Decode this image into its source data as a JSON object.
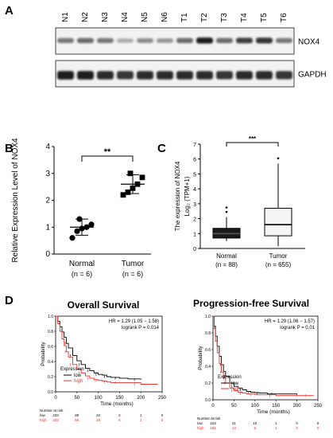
{
  "panel_labels": {
    "a": "A",
    "b": "B",
    "c": "C",
    "d": "D"
  },
  "blot": {
    "lanes": [
      "N1",
      "N2",
      "N3",
      "N4",
      "N5",
      "N6",
      "T1",
      "T2",
      "T3",
      "T4",
      "T5",
      "T6"
    ],
    "bands": [
      "NOX4",
      "GAPDH"
    ],
    "nox4_intensity": [
      0.55,
      0.6,
      0.55,
      0.3,
      0.45,
      0.4,
      0.6,
      0.95,
      0.6,
      0.8,
      0.85,
      0.55
    ],
    "gapdh_intensity": [
      0.95,
      0.95,
      0.9,
      0.85,
      0.9,
      0.9,
      0.9,
      0.9,
      0.85,
      0.9,
      0.9,
      0.85
    ]
  },
  "chart_data": [
    {
      "type": "scatter",
      "ylabel": "Relative Expression Level of NOX4",
      "categories": [
        "Normal",
        "Tumor"
      ],
      "category_ns": [
        "(n = 6)",
        "(n = 6)"
      ],
      "yticks": [
        "0",
        "1",
        "2",
        "3",
        "4"
      ],
      "ylim": [
        0,
        4
      ],
      "groups": [
        {
          "name": "Normal",
          "values": [
            0.6,
            0.85,
            0.95,
            1.0,
            1.1,
            1.3
          ],
          "mean": 1.0,
          "sd": 0.3
        },
        {
          "name": "Tumor",
          "values": [
            2.2,
            2.3,
            2.45,
            2.6,
            2.85,
            3.0
          ],
          "mean": 2.6,
          "sd": 0.35
        }
      ],
      "significance": "**"
    },
    {
      "type": "box",
      "ylabel": "The expression of NOX4",
      "ylabel2": "Log₂ (TPM+1)",
      "categories": [
        "Normal",
        "Tumor"
      ],
      "category_ns": [
        "(n = 88)",
        "(n = 655)"
      ],
      "yticks": [
        "0",
        "1",
        "2",
        "3",
        "4",
        "5",
        "6",
        "7"
      ],
      "ylim": [
        0,
        7
      ],
      "boxes": [
        {
          "name": "Normal",
          "whisker_low": 0.5,
          "q1": 0.7,
          "median": 1.0,
          "q3": 1.35,
          "whisker_high": 2.1,
          "outliers": [
            2.45,
            2.75
          ]
        },
        {
          "name": "Tumor",
          "whisker_low": 0.15,
          "q1": 0.85,
          "median": 1.6,
          "q3": 2.7,
          "whisker_high": 5.7,
          "outliers": [
            6.05
          ]
        }
      ],
      "significance": "***"
    },
    {
      "type": "line",
      "title": "Overall Survival",
      "xlabel": "Time (months)",
      "ylabel": "Probability",
      "xticks": [
        "0",
        "50",
        "100",
        "150",
        "200",
        "250"
      ],
      "yticks": [
        "0.0",
        "0.2",
        "0.4",
        "0.6",
        "0.8",
        "1.0"
      ],
      "xlim": [
        0,
        250
      ],
      "ylim": [
        0,
        1
      ],
      "hr_text": "HR = 1.29 (1.05 − 1.58)",
      "logrank_text": "logrank P = 0.014",
      "legend_title": "Expression",
      "series": [
        {
          "name": "low",
          "color": "#000000",
          "x": [
            0,
            5,
            10,
            15,
            20,
            25,
            30,
            40,
            50,
            60,
            70,
            80,
            90,
            100,
            110,
            120,
            130,
            150,
            170,
            200
          ],
          "y": [
            1.0,
            0.93,
            0.86,
            0.79,
            0.72,
            0.64,
            0.58,
            0.48,
            0.41,
            0.36,
            0.31,
            0.28,
            0.25,
            0.23,
            0.22,
            0.2,
            0.19,
            0.18,
            0.17,
            0.16
          ]
        },
        {
          "name": "high",
          "color": "#e8322c",
          "x": [
            0,
            5,
            10,
            15,
            20,
            25,
            30,
            40,
            50,
            60,
            70,
            80,
            90,
            100,
            110,
            120,
            130,
            150,
            170,
            200,
            240
          ],
          "y": [
            1.0,
            0.9,
            0.8,
            0.7,
            0.61,
            0.53,
            0.46,
            0.36,
            0.3,
            0.25,
            0.21,
            0.18,
            0.16,
            0.15,
            0.14,
            0.13,
            0.12,
            0.12,
            0.12,
            0.1,
            0.1
          ]
        }
      ],
      "risk_table": {
        "label": "Number at risk",
        "times": [
          "0",
          "50",
          "100",
          "150",
          "200",
          "250"
        ],
        "rows": [
          {
            "name": "low",
            "color": "#000000",
            "counts": [
              "333",
              "80",
              "22",
              "2",
              "1",
              "0"
            ]
          },
          {
            "name": "high",
            "color": "#e8322c",
            "counts": [
              "322",
              "66",
              "26",
              "6",
              "1",
              "0"
            ]
          }
        ]
      }
    },
    {
      "type": "line",
      "title": "Progression-free Survival",
      "xlabel": "Time (months)",
      "ylabel": "Probability",
      "xticks": [
        "0",
        "50",
        "100",
        "150",
        "200",
        "250"
      ],
      "yticks": [
        "0.0",
        "0.2",
        "0.4",
        "0.6",
        "0.8",
        "1.0"
      ],
      "xlim": [
        0,
        250
      ],
      "ylim": [
        0,
        1
      ],
      "hr_text": "HR = 1.29 (1.06 − 1.57)",
      "logrank_text": "logrank P = 0.01",
      "legend_title": "Expression",
      "series": [
        {
          "name": "low",
          "color": "#000000",
          "x": [
            0,
            3,
            6,
            10,
            15,
            20,
            25,
            30,
            40,
            50,
            60,
            70,
            80,
            90,
            100,
            110,
            130,
            150,
            200
          ],
          "y": [
            1.0,
            0.88,
            0.76,
            0.64,
            0.52,
            0.42,
            0.34,
            0.28,
            0.2,
            0.16,
            0.14,
            0.12,
            0.1,
            0.09,
            0.085,
            0.08,
            0.07,
            0.07,
            0.06
          ]
        },
        {
          "name": "high",
          "color": "#e8322c",
          "x": [
            0,
            3,
            6,
            10,
            15,
            20,
            25,
            30,
            40,
            50,
            60,
            70,
            80,
            100,
            120,
            150,
            200,
            240
          ],
          "y": [
            1.0,
            0.85,
            0.7,
            0.56,
            0.43,
            0.33,
            0.26,
            0.2,
            0.14,
            0.11,
            0.09,
            0.08,
            0.07,
            0.06,
            0.06,
            0.05,
            0.05,
            0.05
          ]
        }
      ],
      "risk_table": {
        "label": "Number at risk",
        "times": [
          "0",
          "50",
          "100",
          "150",
          "200",
          "250"
        ],
        "rows": [
          {
            "name": "low",
            "color": "#000000",
            "counts": [
              "423",
              "41",
              "10",
              "1",
              "0",
              "0"
            ]
          },
          {
            "name": "high",
            "color": "#e8322c",
            "counts": [
              "181",
              "13",
              "6",
              "1",
              "0",
              "0"
            ]
          }
        ]
      }
    }
  ]
}
